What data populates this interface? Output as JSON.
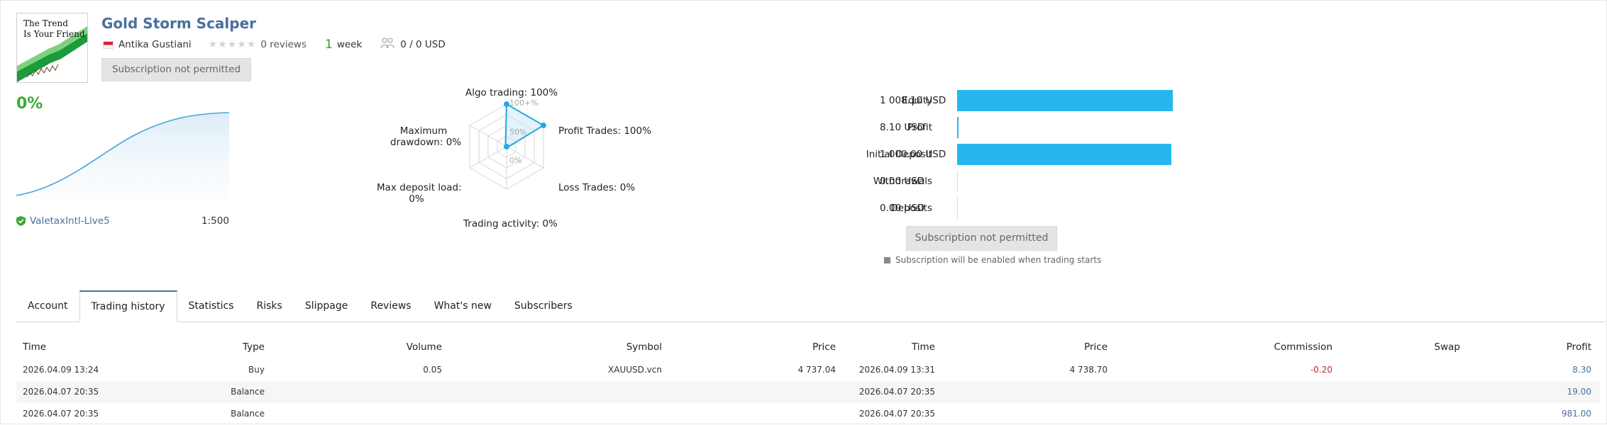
{
  "signal": {
    "logo_text_line1": "The Trend",
    "logo_text_line2": "Is Your Friend",
    "title": "Gold Storm Scalper",
    "author": "Antika Gustiani",
    "reviews": "0 reviews",
    "weeks_num": "1",
    "weeks_unit": "week",
    "subscribers": "0 / 0 USD",
    "subscribe_button": "Subscription not permitted"
  },
  "growth": {
    "value": "0%",
    "broker": "ValetaxIntl-Live5",
    "leverage": "1:500"
  },
  "radar": {
    "algo_trading": "Algo trading: 100%",
    "profit_trades": "Profit Trades: 100%",
    "loss_trades": "Loss Trades: 0%",
    "trading_activity": "Trading activity: 0%",
    "max_deposit_load_1": "Max deposit load:",
    "max_deposit_load_2": "0%",
    "max_drawdown_1": "Maximum",
    "max_drawdown_2": "drawdown: 0%",
    "tick_100": "100+%",
    "tick_50": "50%",
    "tick_0": "0%",
    "values": {
      "algo_trading": 100,
      "profit_trades": 100,
      "loss_trades": 0,
      "trading_activity": 0,
      "max_deposit_load": 0,
      "max_drawdown": 0
    }
  },
  "balance": {
    "rows": [
      {
        "label": "Equity",
        "value": "1 008.10 USD",
        "amount": 1008.1
      },
      {
        "label": "Profit",
        "value": "8.10 USD",
        "amount": 8.1
      },
      {
        "label": "Initial Deposit",
        "value": "1 000.00 USD",
        "amount": 1000.0
      },
      {
        "label": "Withdrawals",
        "value": "0.00 USD",
        "amount": 0
      },
      {
        "label": "Deposits",
        "value": "0.00 USD",
        "amount": 0
      }
    ],
    "subscribe_button": "Subscription not permitted",
    "note": "Subscription will be enabled when trading starts"
  },
  "tabs": [
    "Account",
    "Trading history",
    "Statistics",
    "Risks",
    "Slippage",
    "Reviews",
    "What's new",
    "Subscribers"
  ],
  "active_tab": "Trading history",
  "history": {
    "columns": [
      "Time",
      "Type",
      "Volume",
      "Symbol",
      "Price",
      "Time",
      "Price",
      "Commission",
      "Swap",
      "Profit"
    ],
    "rows": [
      {
        "time": "2026.04.09 13:24",
        "type": "Buy",
        "volume": "0.05",
        "symbol": "XAUUSD.vcn",
        "price": "4 737.04",
        "close_time": "2026.04.09 13:31",
        "close_price": "4 738.70",
        "commission": "-0.20",
        "swap": "",
        "profit": "8.30"
      },
      {
        "time": "2026.04.07 20:35",
        "type": "Balance",
        "volume": "",
        "symbol": "",
        "price": "",
        "close_time": "2026.04.07 20:35",
        "close_price": "",
        "commission": "",
        "swap": "",
        "profit": "19.00"
      },
      {
        "time": "2026.04.07 20:35",
        "type": "Balance",
        "volume": "",
        "symbol": "",
        "price": "",
        "close_time": "2026.04.07 20:35",
        "close_price": "",
        "commission": "",
        "swap": "",
        "profit": "981.00"
      }
    ]
  },
  "colors": {
    "accent": "#4a6f9c",
    "bar": "#27b7ee",
    "positive": "#3aaa35",
    "negative": "#c0272d"
  }
}
